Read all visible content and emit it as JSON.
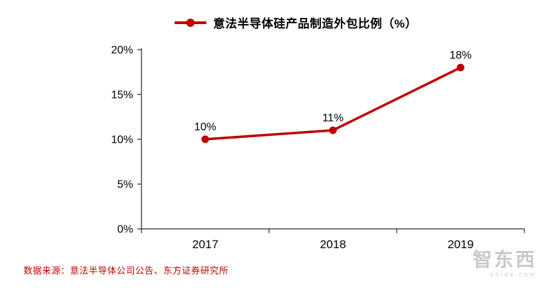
{
  "chart_data": {
    "type": "line",
    "title": "意法半导体硅产品制造外包比例（%）",
    "categories": [
      "2017",
      "2018",
      "2019"
    ],
    "values": [
      10,
      11,
      18
    ],
    "data_labels": [
      "10%",
      "11%",
      "18%"
    ],
    "y_ticks": [
      0,
      5,
      10,
      15,
      20
    ],
    "y_tick_labels": [
      "0%",
      "5%",
      "10%",
      "15%",
      "20%"
    ],
    "ylim": [
      0,
      20
    ],
    "xlabel": "",
    "ylabel": "",
    "grid": false,
    "legend_position": "top",
    "line_color": "#C00000",
    "axis_color": "#262626",
    "label_color": "#000000"
  },
  "footer": {
    "source": "数据来源：意法半导体公司公告、东方证券研究所",
    "source_color": "#C00000"
  },
  "watermark": {
    "text": "智东西",
    "subtext": "zhidx.com"
  }
}
